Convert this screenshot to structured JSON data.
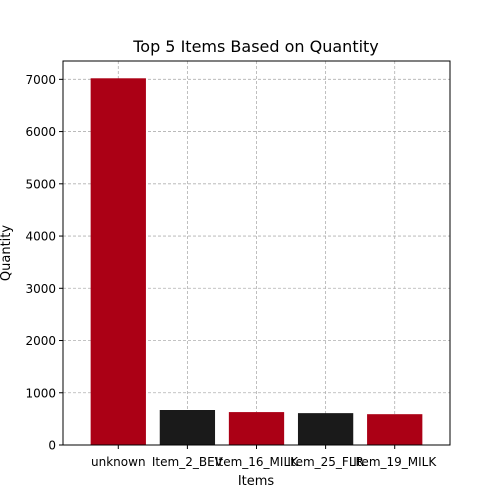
{
  "chart_data": {
    "type": "bar",
    "title": "Top 5 Items Based on Quantity",
    "xlabel": "Items",
    "ylabel": "Quantity",
    "categories": [
      "unknown",
      "Item_2_BEV",
      "Item_16_MILK",
      "Item_25_FLR",
      "Item_19_MILK"
    ],
    "values": [
      7020,
      670,
      630,
      610,
      590
    ],
    "bar_colors": [
      "#ab0015",
      "#1a1a1a",
      "#ab0015",
      "#1a1a1a",
      "#ab0015"
    ],
    "ylim": [
      0,
      7351
    ],
    "yticks": [
      0,
      1000,
      2000,
      3000,
      4000,
      5000,
      6000,
      7000
    ],
    "grid": true
  }
}
